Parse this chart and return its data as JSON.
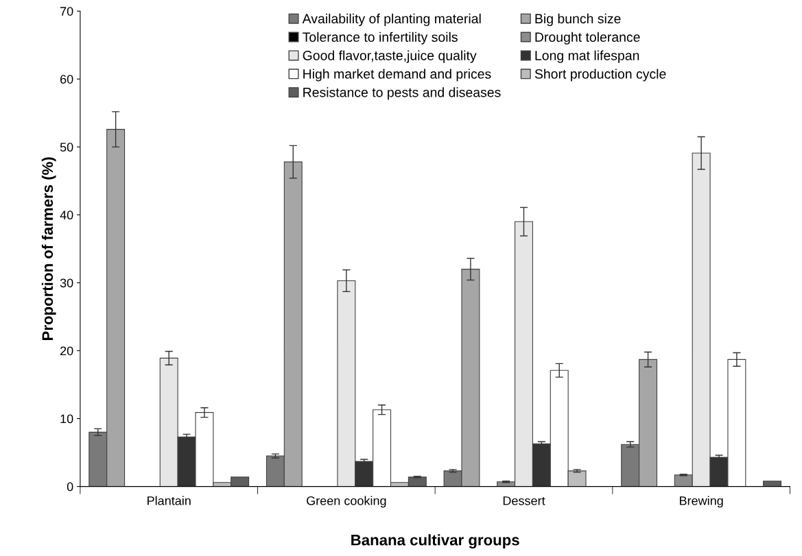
{
  "chart_data": {
    "type": "bar",
    "xlabel": "Banana cultivar groups",
    "ylabel": "Proportion of farmers (%)",
    "categories": [
      "Plantain",
      "Green cooking",
      "Dessert",
      "Brewing"
    ],
    "ylim": [
      0,
      70
    ],
    "yticks": [
      0,
      10,
      20,
      30,
      40,
      50,
      60,
      70
    ],
    "grid": false,
    "legend": "top",
    "series": [
      {
        "name": "Availability of planting material",
        "color": "#7a7a7a",
        "values": [
          8.0,
          4.5,
          2.3,
          6.2
        ],
        "errors": [
          0.5,
          0.3,
          0.2,
          0.4
        ]
      },
      {
        "name": "Big bunch size",
        "color": "#a6a6a6",
        "values": [
          52.6,
          47.8,
          32.0,
          18.7
        ],
        "errors": [
          2.6,
          2.4,
          1.6,
          1.1
        ]
      },
      {
        "name": "Tolerance to infertility soils",
        "color": "#000000",
        "values": [
          0,
          0,
          0,
          0
        ],
        "errors": [
          null,
          null,
          null,
          null
        ]
      },
      {
        "name": "Drought tolerance",
        "color": "#8c8c8c",
        "values": [
          0,
          0,
          0.7,
          1.7
        ],
        "errors": [
          null,
          null,
          0.1,
          0.1
        ]
      },
      {
        "name": "Good flavor,taste,juice quality",
        "color": "#e6e6e6",
        "values": [
          18.9,
          30.3,
          39.0,
          49.1
        ],
        "errors": [
          1.0,
          1.6,
          2.1,
          2.4
        ]
      },
      {
        "name": "Long mat lifespan",
        "color": "#333333",
        "values": [
          7.3,
          3.7,
          6.3,
          4.3
        ],
        "errors": [
          0.4,
          0.3,
          0.3,
          0.3
        ]
      },
      {
        "name": "High market demand and prices",
        "color": "#ffffff",
        "values": [
          10.9,
          11.3,
          17.1,
          18.7
        ],
        "errors": [
          0.7,
          0.7,
          1.0,
          1.0
        ]
      },
      {
        "name": "Short production cycle",
        "color": "#bdbdbd",
        "values": [
          0.6,
          0.6,
          2.3,
          0
        ],
        "errors": [
          null,
          null,
          0.2,
          null
        ]
      },
      {
        "name": "Resistance to pests and diseases",
        "color": "#5e5e5e",
        "values": [
          1.4,
          1.4,
          0,
          0.8
        ],
        "errors": [
          null,
          0.1,
          null,
          null
        ]
      }
    ]
  }
}
